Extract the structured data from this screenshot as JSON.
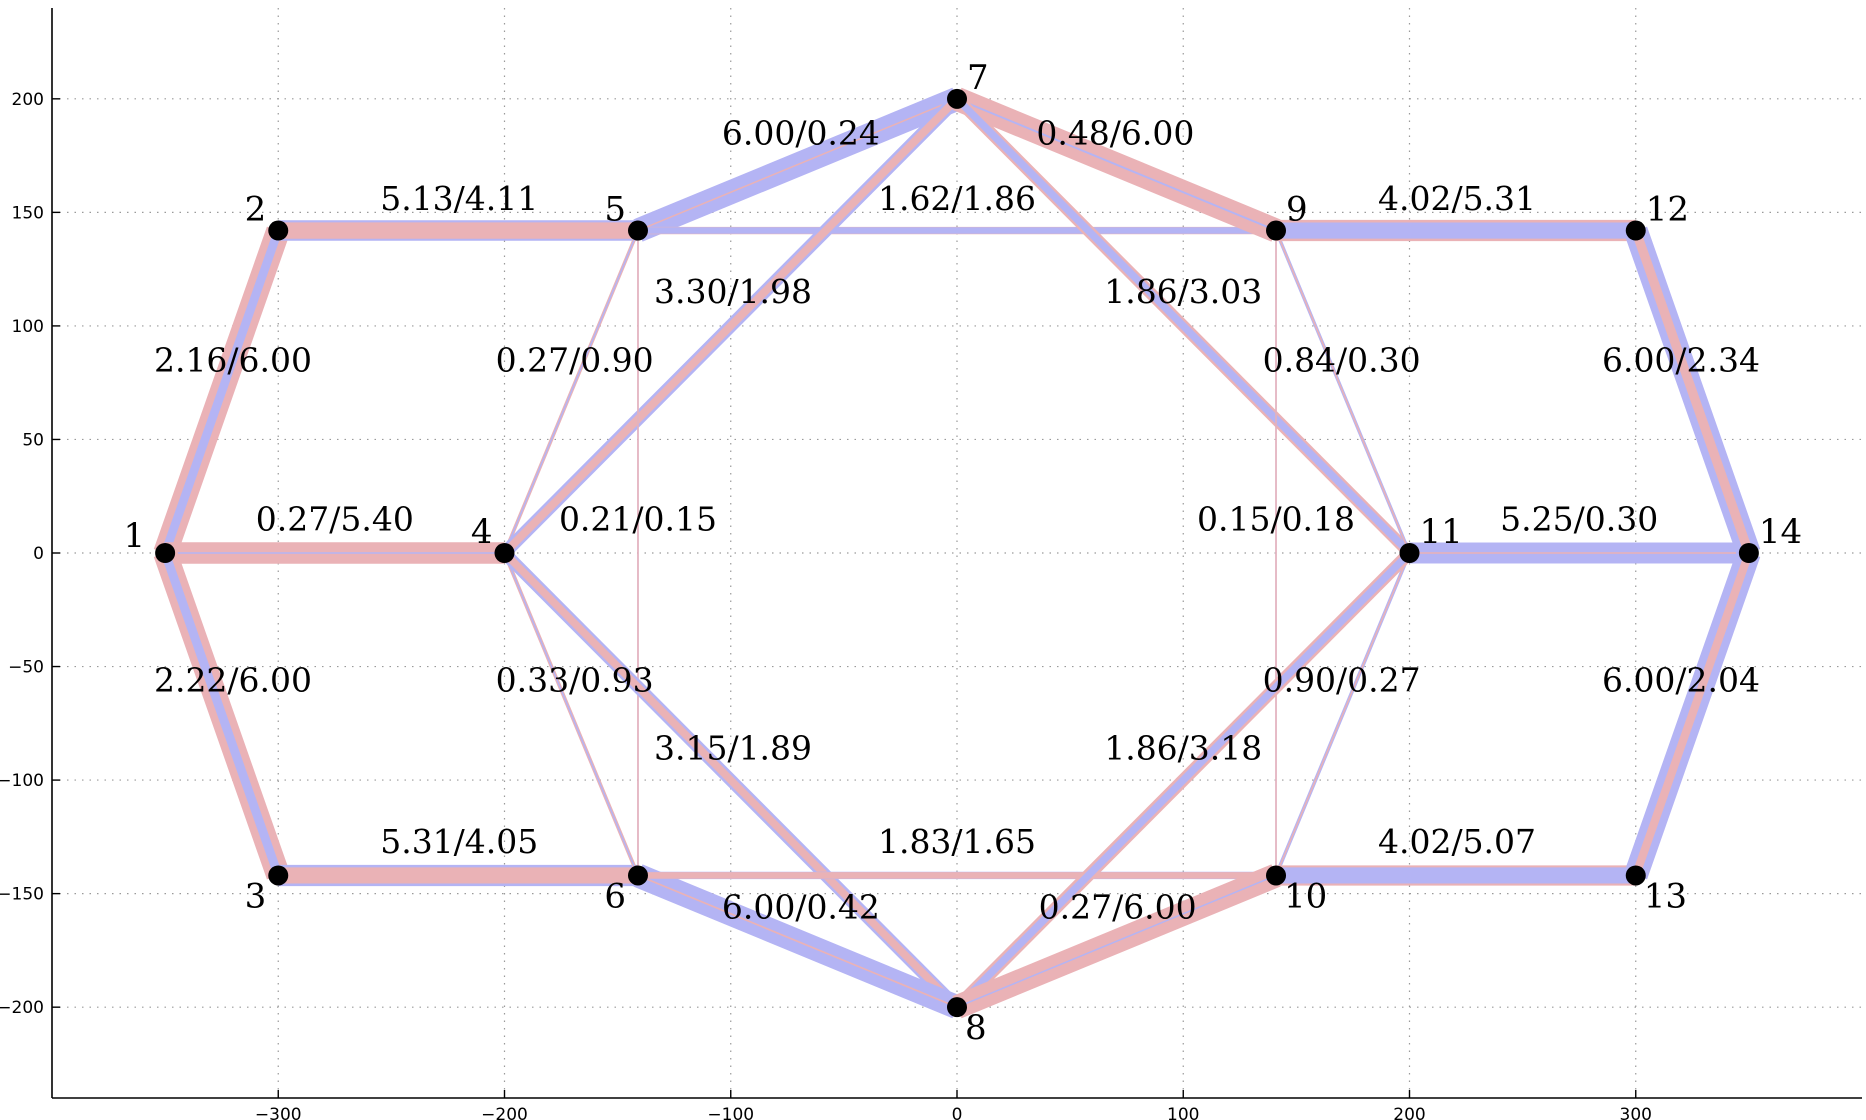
{
  "chart_data": {
    "type": "network-graph",
    "xlim": [
      -400,
      400
    ],
    "ylim": [
      -240,
      240
    ],
    "x_ticks": [
      -300,
      -200,
      -100,
      0,
      100,
      200,
      300
    ],
    "y_ticks": [
      -200,
      -150,
      -100,
      -50,
      0,
      50,
      100,
      150,
      200
    ],
    "grid": true,
    "colors": {
      "series_a": "#b4b4f4",
      "series_b": "#eab2b6",
      "node": "#000000"
    },
    "nodes": [
      {
        "id": "1",
        "x": -350,
        "y": 0,
        "label_pos": "left"
      },
      {
        "id": "2",
        "x": -300,
        "y": 142,
        "label_pos": "above-left"
      },
      {
        "id": "3",
        "x": -300,
        "y": -142,
        "label_pos": "below-left"
      },
      {
        "id": "4",
        "x": -200,
        "y": 0,
        "label_pos": "above-left"
      },
      {
        "id": "5",
        "x": -141,
        "y": 142,
        "label_pos": "above-left"
      },
      {
        "id": "6",
        "x": -141,
        "y": -142,
        "label_pos": "below-left"
      },
      {
        "id": "7",
        "x": 0,
        "y": 200,
        "label_pos": "above-right"
      },
      {
        "id": "8",
        "x": 0,
        "y": -200,
        "label_pos": "below-right"
      },
      {
        "id": "9",
        "x": 141,
        "y": 142,
        "label_pos": "above-right"
      },
      {
        "id": "10",
        "x": 141,
        "y": -142,
        "label_pos": "below-right"
      },
      {
        "id": "11",
        "x": 200,
        "y": 0,
        "label_pos": "above-right"
      },
      {
        "id": "12",
        "x": 300,
        "y": 142,
        "label_pos": "above-right"
      },
      {
        "id": "13",
        "x": 300,
        "y": -142,
        "label_pos": "below-right"
      },
      {
        "id": "14",
        "x": 350,
        "y": 0,
        "label_pos": "above-right"
      }
    ],
    "edges": [
      {
        "from": "1",
        "to": "2",
        "a": 2.16,
        "b": 6.0,
        "label": "2.16/6.00",
        "lx": -320,
        "ly": 80
      },
      {
        "from": "1",
        "to": "4",
        "a": 0.27,
        "b": 5.4,
        "label": "0.27/5.40",
        "lx": -275,
        "ly": 10
      },
      {
        "from": "1",
        "to": "3",
        "a": 2.22,
        "b": 6.0,
        "label": "2.22/6.00",
        "lx": -320,
        "ly": -61
      },
      {
        "from": "2",
        "to": "5",
        "a": 5.13,
        "b": 4.11,
        "label": "5.13/4.11",
        "lx": -220,
        "ly": 151
      },
      {
        "from": "3",
        "to": "6",
        "a": 5.31,
        "b": 4.05,
        "label": "5.31/4.05",
        "lx": -220,
        "ly": -132
      },
      {
        "from": "5",
        "to": "7",
        "a": 6.0,
        "b": 0.24,
        "label": "6.00/0.24",
        "lx": -69,
        "ly": 180
      },
      {
        "from": "5",
        "to": "9",
        "a": 1.62,
        "b": 1.86,
        "label": "1.62/1.86",
        "lx": 0,
        "ly": 151
      },
      {
        "from": "5",
        "to": "4",
        "a": 0.27,
        "b": 0.9,
        "label": "0.27/0.90",
        "lx": -169,
        "ly": 80
      },
      {
        "from": "4",
        "to": "7",
        "a": 3.3,
        "b": 1.98,
        "label": "3.30/1.98",
        "lx": -99,
        "ly": 110
      },
      {
        "from": "5",
        "to": "6",
        "a": 0.21,
        "b": 0.15,
        "label": "0.21/0.15",
        "lx": -141,
        "ly": 10
      },
      {
        "from": "4",
        "to": "6",
        "a": 0.33,
        "b": 0.93,
        "label": "0.33/0.93",
        "lx": -169,
        "ly": -61
      },
      {
        "from": "4",
        "to": "8",
        "a": 3.15,
        "b": 1.89,
        "label": "3.15/1.89",
        "lx": -99,
        "ly": -91
      },
      {
        "from": "6",
        "to": "8",
        "a": 6.0,
        "b": 0.42,
        "label": "6.00/0.42",
        "lx": -69,
        "ly": -161
      },
      {
        "from": "6",
        "to": "10",
        "a": 1.83,
        "b": 1.65,
        "label": "1.83/1.65",
        "lx": 0,
        "ly": -132
      },
      {
        "from": "7",
        "to": "9",
        "a": 0.48,
        "b": 6.0,
        "label": "0.48/6.00",
        "lx": 70,
        "ly": 180
      },
      {
        "from": "7",
        "to": "11",
        "a": 1.86,
        "b": 3.03,
        "label": "1.86/3.03",
        "lx": 100,
        "ly": 110
      },
      {
        "from": "9",
        "to": "11",
        "a": 0.84,
        "b": 0.3,
        "label": "0.84/0.30",
        "lx": 170,
        "ly": 80
      },
      {
        "from": "9",
        "to": "10",
        "a": 0.15,
        "b": 0.18,
        "label": "0.15/0.18",
        "lx": 141,
        "ly": 10
      },
      {
        "from": "10",
        "to": "11",
        "a": 0.9,
        "b": 0.27,
        "label": "0.90/0.27",
        "lx": 170,
        "ly": -61
      },
      {
        "from": "8",
        "to": "11",
        "a": 1.86,
        "b": 3.18,
        "label": "1.86/3.18",
        "lx": 100,
        "ly": -91
      },
      {
        "from": "8",
        "to": "10",
        "a": 0.27,
        "b": 6.0,
        "label": "0.27/6.00",
        "lx": 71,
        "ly": -161
      },
      {
        "from": "9",
        "to": "12",
        "a": 4.02,
        "b": 5.31,
        "label": "4.02/5.31",
        "lx": 221,
        "ly": 151
      },
      {
        "from": "10",
        "to": "13",
        "a": 4.02,
        "b": 5.07,
        "label": "4.02/5.07",
        "lx": 221,
        "ly": -132
      },
      {
        "from": "11",
        "to": "14",
        "a": 5.25,
        "b": 0.3,
        "label": "5.25/0.30",
        "lx": 275,
        "ly": 10
      },
      {
        "from": "12",
        "to": "14",
        "a": 6.0,
        "b": 2.34,
        "label": "6.00/2.34",
        "lx": 320,
        "ly": 80
      },
      {
        "from": "13",
        "to": "14",
        "a": 6.0,
        "b": 2.04,
        "label": "6.00/2.04",
        "lx": 320,
        "ly": -61
      }
    ]
  }
}
